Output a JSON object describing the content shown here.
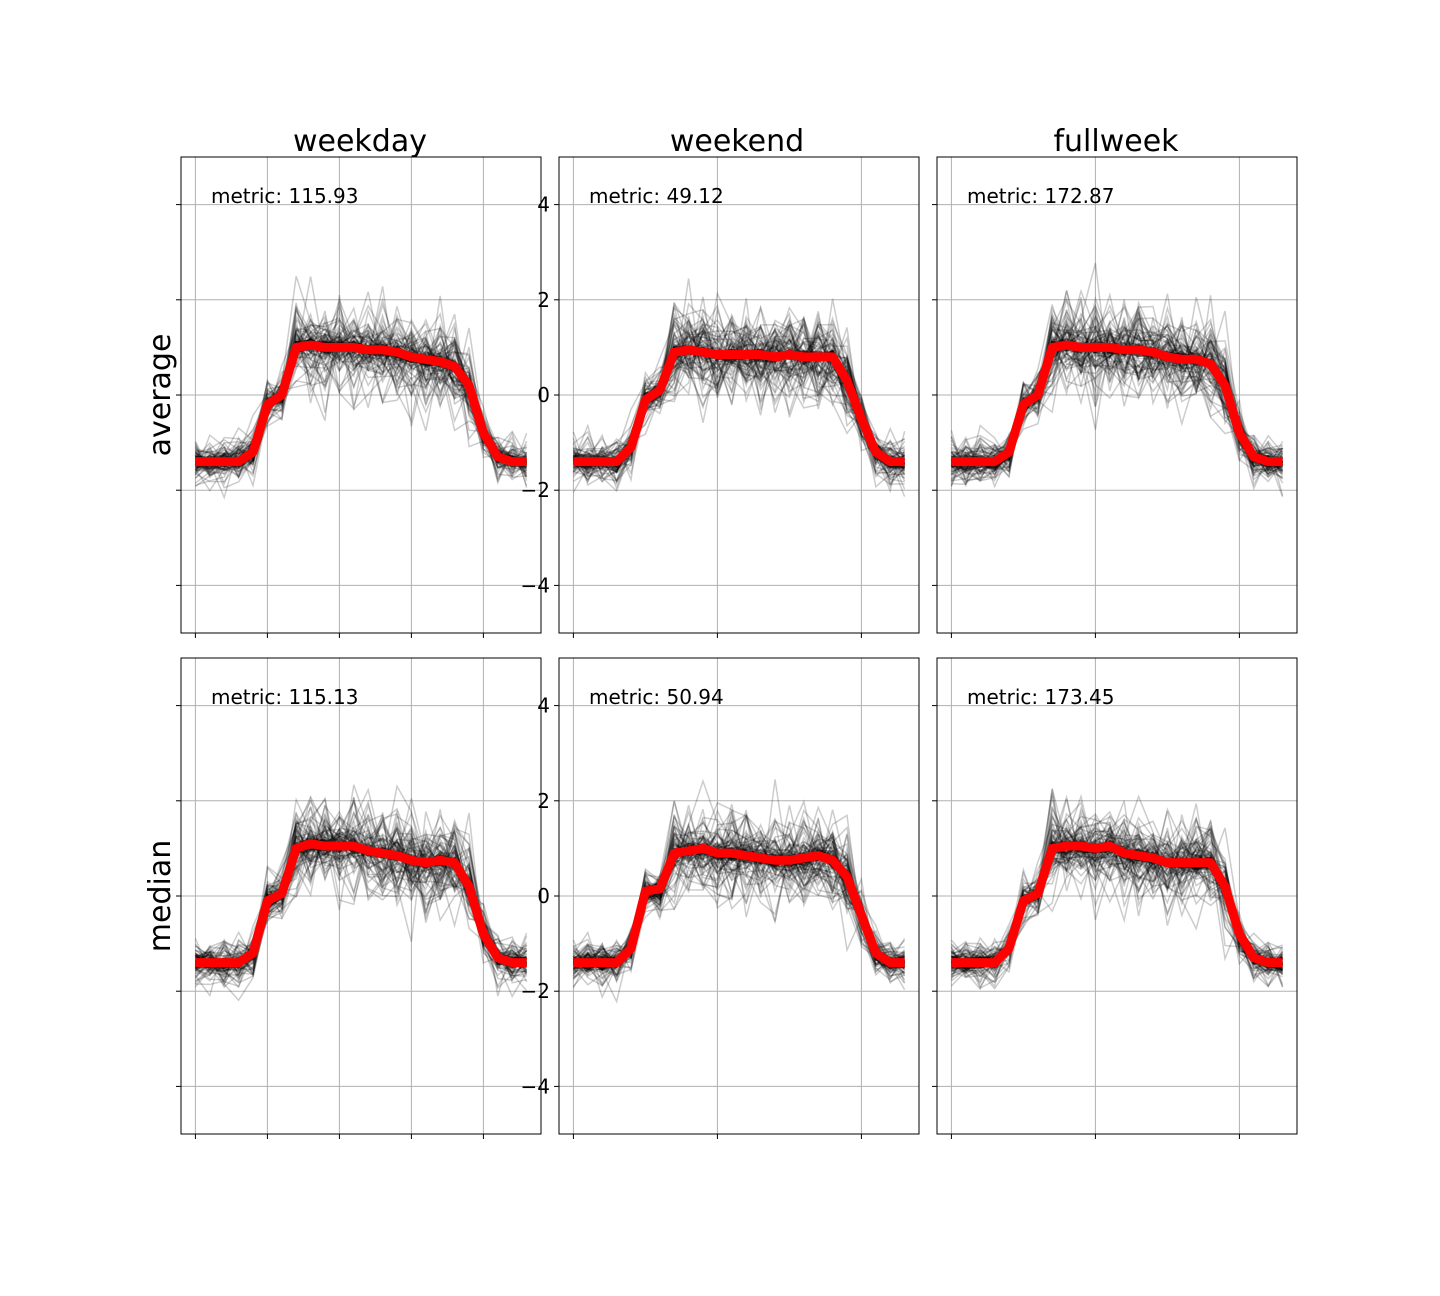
{
  "figure": {
    "columns": [
      "weekday",
      "weekend",
      "fullweek"
    ],
    "rows": [
      "average",
      "median"
    ]
  },
  "colors": {
    "background_lines": "#000000",
    "highlight": "#ff0000",
    "grid": "#b0b0b0",
    "axes": "#000000"
  },
  "chart_data": [
    {
      "type": "line",
      "column": "weekday",
      "row": "average",
      "annotation": "metric: 115.93",
      "ylim": [
        -5,
        5
      ],
      "yticks": [
        -4,
        -2,
        0,
        2,
        4
      ],
      "show_ytick_labels": false,
      "xlim": [
        -1,
        24
      ],
      "xticks": [
        0,
        5,
        10,
        15,
        20
      ],
      "show_xtick_labels": false,
      "grid": true,
      "series": [
        {
          "role": "highlight",
          "x": [
            0,
            1,
            2,
            3,
            4,
            5,
            6,
            7,
            8,
            9,
            10,
            11,
            12,
            13,
            14,
            15,
            16,
            17,
            18,
            19,
            20,
            21,
            22,
            23
          ],
          "values": [
            -1.4,
            -1.4,
            -1.4,
            -1.4,
            -1.2,
            -0.2,
            0.0,
            1.0,
            1.05,
            1.0,
            1.0,
            1.0,
            0.95,
            0.95,
            0.9,
            0.8,
            0.75,
            0.7,
            0.6,
            0.2,
            -0.8,
            -1.3,
            -1.4,
            -1.4
          ]
        }
      ]
    },
    {
      "type": "line",
      "column": "weekend",
      "row": "average",
      "annotation": "metric: 49.12",
      "ylim": [
        -5,
        5
      ],
      "yticks": [
        -4,
        -2,
        0,
        2,
        4
      ],
      "show_ytick_labels": true,
      "xlim": [
        -1,
        24
      ],
      "xticks": [
        0,
        10,
        20
      ],
      "show_xtick_labels": false,
      "grid": true,
      "series": [
        {
          "role": "highlight",
          "x": [
            0,
            1,
            2,
            3,
            4,
            5,
            6,
            7,
            8,
            9,
            10,
            11,
            12,
            13,
            14,
            15,
            16,
            17,
            18,
            19,
            20,
            21,
            22,
            23
          ],
          "values": [
            -1.4,
            -1.4,
            -1.4,
            -1.4,
            -1.1,
            -0.1,
            0.1,
            0.9,
            0.95,
            0.9,
            0.85,
            0.85,
            0.85,
            0.85,
            0.8,
            0.85,
            0.8,
            0.8,
            0.8,
            0.3,
            -0.5,
            -1.2,
            -1.4,
            -1.4
          ]
        }
      ]
    },
    {
      "type": "line",
      "column": "fullweek",
      "row": "average",
      "annotation": "metric: 172.87",
      "ylim": [
        -5,
        5
      ],
      "yticks": [
        -4,
        -2,
        0,
        2,
        4
      ],
      "show_ytick_labels": false,
      "xlim": [
        -1,
        24
      ],
      "xticks": [
        0,
        10,
        20
      ],
      "show_xtick_labels": false,
      "grid": true,
      "series": [
        {
          "role": "highlight",
          "x": [
            0,
            1,
            2,
            3,
            4,
            5,
            6,
            7,
            8,
            9,
            10,
            11,
            12,
            13,
            14,
            15,
            16,
            17,
            18,
            19,
            20,
            21,
            22,
            23
          ],
          "values": [
            -1.4,
            -1.4,
            -1.4,
            -1.4,
            -1.2,
            -0.2,
            0.0,
            1.0,
            1.05,
            1.0,
            1.0,
            1.0,
            0.95,
            0.95,
            0.9,
            0.8,
            0.75,
            0.75,
            0.65,
            0.2,
            -0.8,
            -1.3,
            -1.4,
            -1.4
          ]
        }
      ]
    },
    {
      "type": "line",
      "column": "weekday",
      "row": "median",
      "annotation": "metric: 115.13",
      "ylim": [
        -5,
        5
      ],
      "yticks": [
        -4,
        -2,
        0,
        2,
        4
      ],
      "show_ytick_labels": false,
      "xlim": [
        -1,
        24
      ],
      "xticks": [
        0,
        5,
        10,
        15,
        20
      ],
      "show_xtick_labels": false,
      "grid": true,
      "series": [
        {
          "role": "highlight",
          "x": [
            0,
            1,
            2,
            3,
            4,
            5,
            6,
            7,
            8,
            9,
            10,
            11,
            12,
            13,
            14,
            15,
            16,
            17,
            18,
            19,
            20,
            21,
            22,
            23
          ],
          "values": [
            -1.4,
            -1.4,
            -1.4,
            -1.4,
            -1.2,
            -0.1,
            0.05,
            1.0,
            1.1,
            1.05,
            1.05,
            1.05,
            0.95,
            0.9,
            0.85,
            0.75,
            0.7,
            0.75,
            0.7,
            0.2,
            -0.8,
            -1.3,
            -1.4,
            -1.4
          ]
        }
      ]
    },
    {
      "type": "line",
      "column": "weekend",
      "row": "median",
      "annotation": "metric: 50.94",
      "ylim": [
        -5,
        5
      ],
      "yticks": [
        -4,
        -2,
        0,
        2,
        4
      ],
      "show_ytick_labels": true,
      "xlim": [
        -1,
        24
      ],
      "xticks": [
        0,
        10,
        20
      ],
      "show_xtick_labels": false,
      "grid": true,
      "series": [
        {
          "role": "highlight",
          "x": [
            0,
            1,
            2,
            3,
            4,
            5,
            6,
            7,
            8,
            9,
            10,
            11,
            12,
            13,
            14,
            15,
            16,
            17,
            18,
            19,
            20,
            21,
            22,
            23
          ],
          "values": [
            -1.4,
            -1.4,
            -1.4,
            -1.4,
            -1.1,
            0.1,
            0.15,
            0.9,
            0.95,
            1.0,
            0.9,
            0.9,
            0.85,
            0.8,
            0.75,
            0.75,
            0.8,
            0.85,
            0.75,
            0.4,
            -0.4,
            -1.2,
            -1.4,
            -1.4
          ]
        }
      ]
    },
    {
      "type": "line",
      "column": "fullweek",
      "row": "median",
      "annotation": "metric: 173.45",
      "ylim": [
        -5,
        5
      ],
      "yticks": [
        -4,
        -2,
        0,
        2,
        4
      ],
      "show_ytick_labels": false,
      "xlim": [
        -1,
        24
      ],
      "xticks": [
        0,
        10,
        20
      ],
      "show_xtick_labels": false,
      "grid": true,
      "series": [
        {
          "role": "highlight",
          "x": [
            0,
            1,
            2,
            3,
            4,
            5,
            6,
            7,
            8,
            9,
            10,
            11,
            12,
            13,
            14,
            15,
            16,
            17,
            18,
            19,
            20,
            21,
            22,
            23
          ],
          "values": [
            -1.4,
            -1.4,
            -1.4,
            -1.4,
            -1.1,
            -0.1,
            0.05,
            1.0,
            1.05,
            1.05,
            1.0,
            1.05,
            0.9,
            0.85,
            0.8,
            0.7,
            0.7,
            0.7,
            0.7,
            0.2,
            -0.8,
            -1.3,
            -1.4,
            -1.4
          ]
        }
      ]
    }
  ]
}
